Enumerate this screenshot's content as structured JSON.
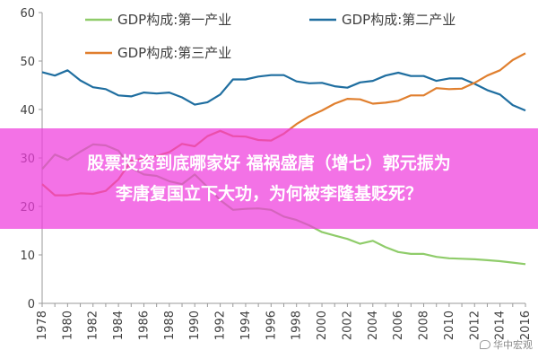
{
  "overlay": {
    "line1": "股票投资到底哪家好 福祸盛唐（增七）郭元振为",
    "line2": "李唐复国立下大功，为何被李隆基贬死？"
  },
  "watermark": {
    "text": "华中宏观",
    "icon": "wechat-icon"
  },
  "chart_data": {
    "type": "line",
    "title": "",
    "xlabel": "",
    "ylabel": "",
    "ylim": [
      0,
      60
    ],
    "yticks": [
      0,
      10,
      20,
      30,
      40,
      50,
      60
    ],
    "xlim": [
      1978,
      2016
    ],
    "xticks": [
      1978,
      1980,
      1982,
      1984,
      1986,
      1988,
      1990,
      1992,
      1994,
      1996,
      1998,
      2000,
      2002,
      2004,
      2006,
      2008,
      2010,
      2012,
      2014,
      2016
    ],
    "grid": false,
    "legend": "top",
    "x": [
      1978,
      1979,
      1980,
      1981,
      1982,
      1983,
      1984,
      1985,
      1986,
      1987,
      1988,
      1989,
      1990,
      1991,
      1992,
      1993,
      1994,
      1995,
      1996,
      1997,
      1998,
      1999,
      2000,
      2001,
      2002,
      2003,
      2004,
      2005,
      2006,
      2007,
      2008,
      2009,
      2010,
      2011,
      2012,
      2013,
      2014,
      2015,
      2016
    ],
    "series": [
      {
        "name": "GDP构成:第一产业",
        "color": "#8fcc6a",
        "values": [
          27.7,
          30.7,
          29.6,
          31.3,
          32.8,
          32.6,
          31.5,
          27.9,
          26.6,
          26.3,
          25.2,
          24.6,
          26.6,
          24.0,
          21.3,
          19.3,
          19.5,
          19.6,
          19.3,
          17.9,
          17.2,
          16.1,
          14.7,
          14.0,
          13.3,
          12.3,
          12.9,
          11.6,
          10.6,
          10.2,
          10.2,
          9.6,
          9.3,
          9.2,
          9.1,
          8.9,
          8.7,
          8.4,
          8.1
        ]
      },
      {
        "name": "GDP构成:第二产业",
        "color": "#1f6ea0",
        "values": [
          47.7,
          47.0,
          48.1,
          46.0,
          44.6,
          44.2,
          42.9,
          42.7,
          43.5,
          43.3,
          43.5,
          42.5,
          41.0,
          41.5,
          43.1,
          46.2,
          46.2,
          46.8,
          47.1,
          47.1,
          45.8,
          45.4,
          45.5,
          44.8,
          44.5,
          45.6,
          45.9,
          47.0,
          47.6,
          46.9,
          46.9,
          45.9,
          46.4,
          46.4,
          45.3,
          44.0,
          43.1,
          40.9,
          39.8
        ]
      },
      {
        "name": "GDP构成:第三产业",
        "color": "#e07f2e",
        "values": [
          24.6,
          22.3,
          22.3,
          22.7,
          22.6,
          23.2,
          25.6,
          29.4,
          29.9,
          30.4,
          31.2,
          32.9,
          32.4,
          34.5,
          35.6,
          34.5,
          34.4,
          33.7,
          33.6,
          35.0,
          37.0,
          38.6,
          39.8,
          41.2,
          42.2,
          42.1,
          41.2,
          41.4,
          41.8,
          42.9,
          42.9,
          44.4,
          44.2,
          44.3,
          45.5,
          47.0,
          48.1,
          50.2,
          51.6
        ]
      }
    ]
  }
}
